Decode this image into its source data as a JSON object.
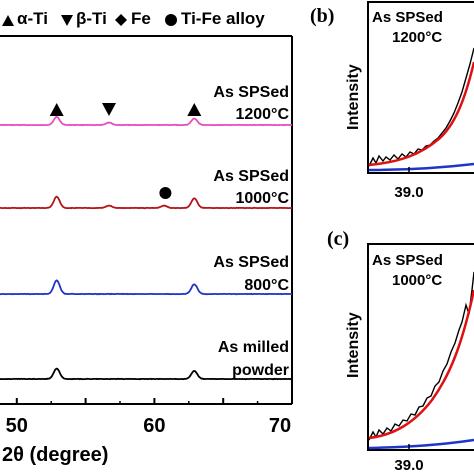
{
  "legend": {
    "items": [
      {
        "marker": "triangle-up",
        "label": "α-Ti"
      },
      {
        "marker": "triangle-down",
        "label": "β-Ti"
      },
      {
        "marker": "diamond",
        "label": "Fe"
      },
      {
        "marker": "circle",
        "label": "Ti-Fe alloy"
      }
    ]
  },
  "main_chart": {
    "xlabel": "2θ (degree)",
    "xlim": [
      45,
      70
    ],
    "xticks": [
      50,
      60,
      70
    ]
  },
  "chart_data": [
    {
      "type": "line",
      "title": "",
      "xlabel": "2θ (degree)",
      "ylabel": "",
      "xlim": [
        45,
        70
      ],
      "x_ticks": [
        "50",
        "60",
        "70"
      ],
      "series": [
        {
          "name": "As SPSed 1200°C",
          "label_lines": [
            "As SPSed",
            "1200°C"
          ],
          "color": "#e64fc0",
          "baseline": 0,
          "peaks": [
            {
              "x": 52.9,
              "h": 1.0
            },
            {
              "x": 56.7,
              "h": 0.3
            },
            {
              "x": 62.9,
              "h": 0.8
            }
          ]
        },
        {
          "name": "As SPSed 1000°C",
          "label_lines": [
            "As SPSed",
            "1000°C"
          ],
          "color": "#b5141b",
          "baseline": 0,
          "peaks": [
            {
              "x": 52.9,
              "h": 1.4
            },
            {
              "x": 56.7,
              "h": 0.3
            },
            {
              "x": 60.7,
              "h": 0.3
            },
            {
              "x": 62.9,
              "h": 1.2
            }
          ]
        },
        {
          "name": "As SPSed 800°C",
          "label_lines": [
            "As SPSed",
            "800°C"
          ],
          "color": "#1f35c8",
          "baseline": 0,
          "peaks": [
            {
              "x": 52.9,
              "h": 1.7
            },
            {
              "x": 62.9,
              "h": 1.2
            }
          ]
        },
        {
          "name": "As milled powder",
          "label_lines": [
            "As milled",
            "powder"
          ],
          "color": "#000000",
          "baseline": 0,
          "peaks": [
            {
              "x": 52.9,
              "h": 1.3
            },
            {
              "x": 62.9,
              "h": 1.0
            }
          ]
        }
      ],
      "markers": [
        {
          "symbol": "triangle-up",
          "x": 52.9,
          "on": "As SPSed 1200°C"
        },
        {
          "symbol": "triangle-down",
          "x": 56.7,
          "on": "As SPSed 1200°C"
        },
        {
          "symbol": "triangle-up",
          "x": 62.9,
          "on": "As SPSed 1200°C"
        },
        {
          "symbol": "circle",
          "x": 60.8,
          "on": "As SPSed 1000°C"
        }
      ]
    },
    {
      "type": "line",
      "panel_label": "(b)",
      "annotation_lines": [
        "As SPSed",
        "1200°C"
      ],
      "ylabel": "Intensity",
      "x_ticks": [
        "39.0"
      ],
      "series": [
        {
          "name": "measured",
          "color": "#000000"
        },
        {
          "name": "fit",
          "color": "#e01010"
        },
        {
          "name": "component",
          "color": "#1f35c8"
        }
      ]
    },
    {
      "type": "line",
      "panel_label": "(c)",
      "annotation_lines": [
        "As SPSed",
        "1000°C"
      ],
      "ylabel": "Intensity",
      "x_ticks": [
        "39.0"
      ],
      "series": [
        {
          "name": "measured",
          "color": "#000000"
        },
        {
          "name": "fit",
          "color": "#e01010"
        },
        {
          "name": "component",
          "color": "#1f35c8"
        }
      ]
    }
  ]
}
